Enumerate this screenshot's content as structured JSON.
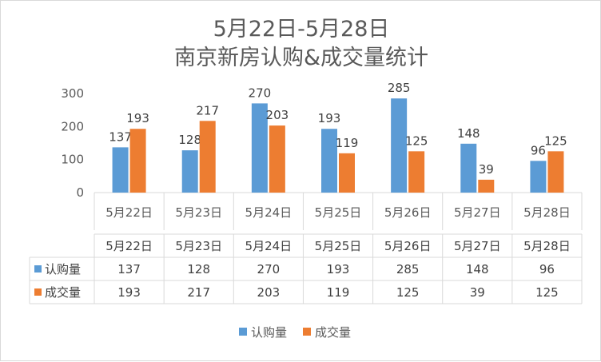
{
  "chart_data": {
    "type": "bar",
    "title": [
      "5月22日-5月28日",
      "南京新房认购&成交量统计"
    ],
    "categories": [
      "5月22日",
      "5月23日",
      "5月24日",
      "5月25日",
      "5月26日",
      "5月27日",
      "5月28日"
    ],
    "series": [
      {
        "name": "认购量",
        "color": "#5b9bd5",
        "values": [
          137,
          128,
          270,
          193,
          285,
          148,
          96
        ]
      },
      {
        "name": "成交量",
        "color": "#ed7d31",
        "values": [
          193,
          217,
          203,
          119,
          125,
          39,
          125
        ]
      }
    ],
    "ylim": [
      0,
      300
    ],
    "yticks": [
      0,
      100,
      200,
      300
    ],
    "data_labels": true,
    "data_table": true,
    "legend_position": "bottom",
    "grid": false
  }
}
